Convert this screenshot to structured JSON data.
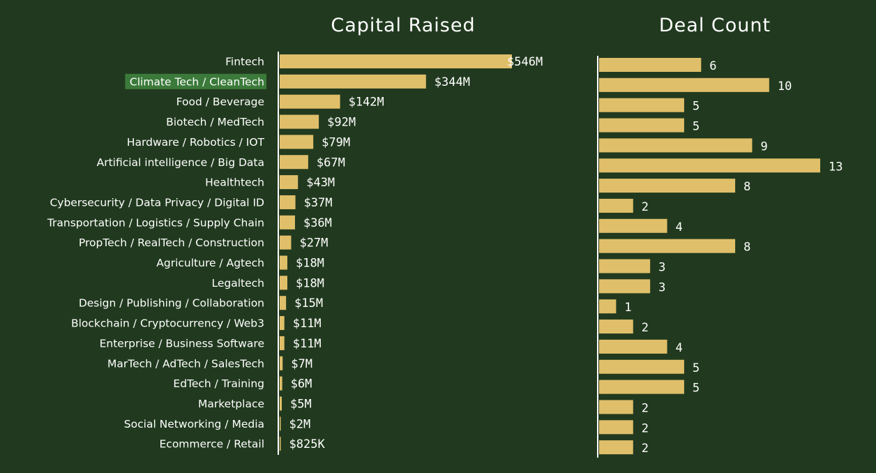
{
  "chart_data": [
    {
      "type": "bar",
      "orientation": "horizontal",
      "title": "Capital Raised",
      "unit": "USD (millions)",
      "categories": [
        "Fintech",
        "Climate Tech / CleanTech",
        "Food / Beverage",
        "Biotech / MedTech",
        "Hardware / Robotics / IOT",
        "Artificial intelligence / Big Data",
        "Healthtech",
        "Cybersecurity / Data Privacy / Digital ID",
        "Transportation / Logistics / Supply Chain",
        "PropTech / RealTech / Construction",
        "Agriculture / Agtech",
        "Legaltech",
        "Design / Publishing / Collaboration",
        "Blockchain / Cryptocurrency / Web3",
        "Enterprise / Business Software",
        "MarTech / AdTech / SalesTech",
        "EdTech / Training",
        "Marketplace",
        "Social Networking / Media",
        "Ecommerce / Retail"
      ],
      "highlighted_category": "Climate Tech / CleanTech",
      "values": [
        546,
        344,
        142,
        92,
        79,
        67,
        43,
        37,
        36,
        27,
        18,
        18,
        15,
        11,
        11,
        7,
        6,
        5,
        2,
        0.825
      ],
      "value_labels": [
        "$546M",
        "$344M",
        "$142M",
        "$92M",
        "$79M",
        "$67M",
        "$43M",
        "$37M",
        "$36M",
        "$27M",
        "$18M",
        "$18M",
        "$15M",
        "$11M",
        "$11M",
        "$7M",
        "$6M",
        "$5M",
        "$2M",
        "$825K"
      ],
      "xlim": [
        0,
        546
      ],
      "grid": false,
      "bar_color": "#e0bf6a"
    },
    {
      "type": "bar",
      "orientation": "horizontal",
      "title": "Deal Count",
      "values": [
        6,
        10,
        5,
        5,
        9,
        13,
        8,
        2,
        4,
        8,
        3,
        3,
        1,
        2,
        4,
        5,
        5,
        2,
        2,
        2
      ],
      "value_labels": [
        "6",
        "10",
        "5",
        "5",
        "9",
        "13",
        "8",
        "2",
        "4",
        "8",
        "3",
        "3",
        "1",
        "2",
        "4",
        "5",
        "5",
        "2",
        "2",
        "2"
      ],
      "xlim": [
        0,
        13
      ],
      "grid": false,
      "bar_color": "#e0bf6a"
    }
  ],
  "colors": {
    "background": "#213a1f",
    "bar": "#e0bf6a",
    "text": "#ffffff",
    "highlight_bg": "#3b7a3a",
    "highlight_text": "#a8d8a0"
  }
}
